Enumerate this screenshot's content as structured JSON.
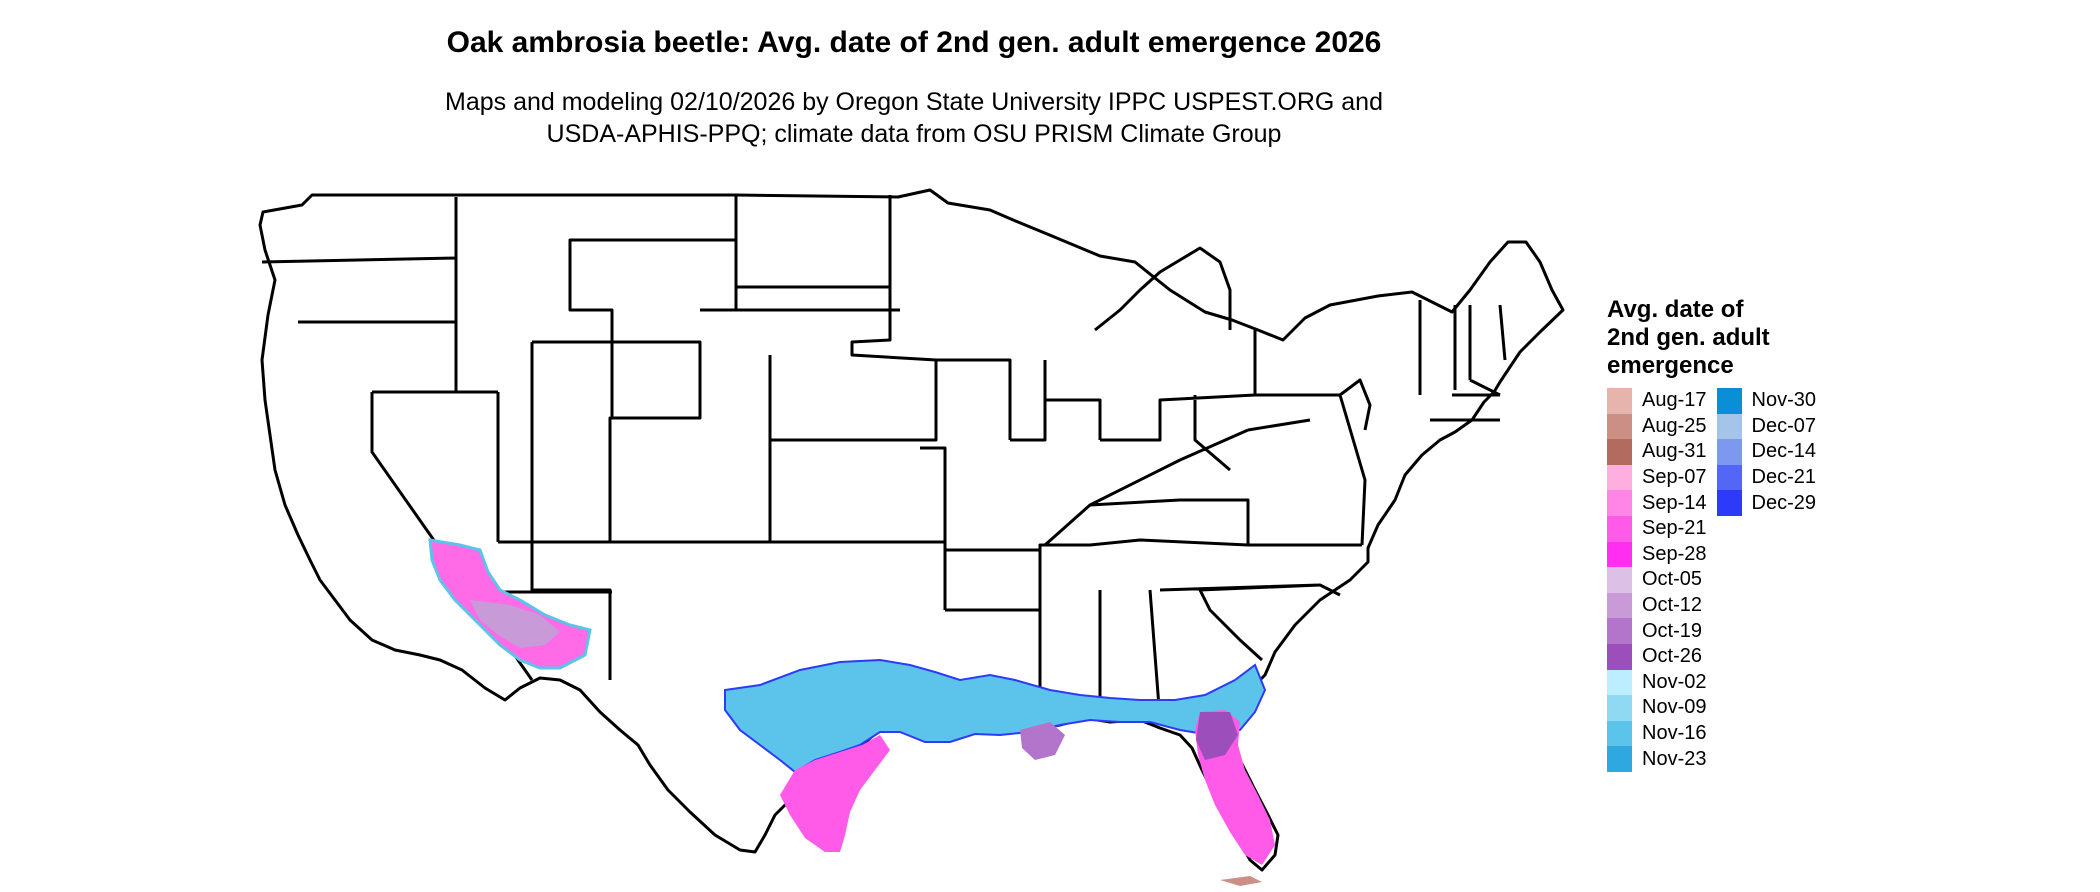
{
  "title": "Oak ambrosia beetle: Avg. date of 2nd gen. adult emergence 2026",
  "subtitle": [
    "Maps and modeling 02/10/2026 by Oregon State University IPPC USPEST.ORG and",
    "USDA-APHIS-PPQ; climate data from OSU PRISM Climate Group"
  ],
  "legend": {
    "title_lines": [
      "Avg. date of",
      "2nd gen. adult",
      "emergence"
    ],
    "columns": [
      [
        {
          "label": "Aug-17",
          "color": "#e6b3ad"
        },
        {
          "label": "Aug-25",
          "color": "#cc8f86"
        },
        {
          "label": "Aug-31",
          "color": "#b36b60"
        },
        {
          "label": "Sep-07",
          "color": "#ffaee0"
        },
        {
          "label": "Sep-14",
          "color": "#ff85e6"
        },
        {
          "label": "Sep-21",
          "color": "#ff5ae8"
        },
        {
          "label": "Sep-28",
          "color": "#ff2ef0"
        },
        {
          "label": "Oct-05",
          "color": "#dcc0e6"
        },
        {
          "label": "Oct-12",
          "color": "#c89ad8"
        },
        {
          "label": "Oct-19",
          "color": "#b374cb"
        },
        {
          "label": "Oct-26",
          "color": "#9c4ebb"
        },
        {
          "label": "Nov-02",
          "color": "#bdeeff"
        },
        {
          "label": "Nov-09",
          "color": "#8fd9f2"
        },
        {
          "label": "Nov-16",
          "color": "#5cc3eb"
        },
        {
          "label": "Nov-23",
          "color": "#2fa8e2"
        }
      ],
      [
        {
          "label": "Nov-30",
          "color": "#0a8fd6"
        },
        {
          "label": "Dec-07",
          "color": "#a4c4ea"
        },
        {
          "label": "Dec-14",
          "color": "#7d98f0"
        },
        {
          "label": "Dec-21",
          "color": "#5466f5"
        },
        {
          "label": "Dec-29",
          "color": "#2d3af9"
        }
      ]
    ]
  }
}
